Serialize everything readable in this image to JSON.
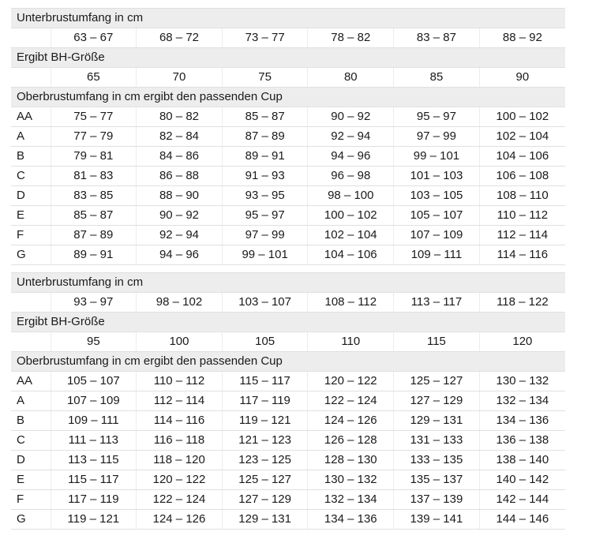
{
  "colors": {
    "header_row_background": "#ededed",
    "row_border": "#e0e0e0",
    "column_separator": "#ececec",
    "text": "#1a1a1a",
    "page_background": "#ffffff"
  },
  "tables": [
    {
      "underbust_header": "Unterbrustumfang in cm",
      "underbust_ranges": [
        "63 – 67",
        "68 – 72",
        "73 – 77",
        "78 – 82",
        "83 – 87",
        "88 – 92"
      ],
      "band_header": "Ergibt BH-Größe",
      "band_sizes": [
        "65",
        "70",
        "75",
        "80",
        "85",
        "90"
      ],
      "cup_header": "Oberbrustumfang in cm ergibt den passenden Cup",
      "cup_rows": [
        {
          "label": "AA",
          "values": [
            "75 – 77",
            "80 – 82",
            "85 – 87",
            "90 – 92",
            "95 – 97",
            "100 – 102"
          ]
        },
        {
          "label": "A",
          "values": [
            "77 – 79",
            "82 – 84",
            "87 – 89",
            "92 – 94",
            "97 – 99",
            "102 – 104"
          ]
        },
        {
          "label": "B",
          "values": [
            "79 – 81",
            "84 – 86",
            "89 – 91",
            "94 – 96",
            "99 – 101",
            "104 – 106"
          ]
        },
        {
          "label": "C",
          "values": [
            "81 – 83",
            "86 – 88",
            "91 – 93",
            "96 – 98",
            "101 – 103",
            "106 – 108"
          ]
        },
        {
          "label": "D",
          "values": [
            "83 – 85",
            "88 – 90",
            "93 – 95",
            "98 – 100",
            "103 – 105",
            "108 – 110"
          ]
        },
        {
          "label": "E",
          "values": [
            "85 – 87",
            "90 – 92",
            "95 – 97",
            "100 – 102",
            "105 – 107",
            "110 – 112"
          ]
        },
        {
          "label": "F",
          "values": [
            "87 – 89",
            "92 – 94",
            "97 – 99",
            "102 – 104",
            "107 – 109",
            "112 – 114"
          ]
        },
        {
          "label": "G",
          "values": [
            "89 – 91",
            "94 – 96",
            "99 – 101",
            "104 – 106",
            "109 – 111",
            "114 – 116"
          ]
        }
      ]
    },
    {
      "underbust_header": "Unterbrustumfang in cm",
      "underbust_ranges": [
        "93 – 97",
        "98 – 102",
        "103 – 107",
        "108 – 112",
        "113 – 117",
        "118 – 122"
      ],
      "band_header": "Ergibt BH-Größe",
      "band_sizes": [
        "95",
        "100",
        "105",
        "110",
        "115",
        "120"
      ],
      "cup_header": "Oberbrustumfang in cm ergibt den passenden Cup",
      "cup_rows": [
        {
          "label": "AA",
          "values": [
            "105 – 107",
            "110 – 112",
            "115 – 117",
            "120 – 122",
            "125 – 127",
            "130 – 132"
          ]
        },
        {
          "label": "A",
          "values": [
            "107 – 109",
            "112 – 114",
            "117 – 119",
            "122 – 124",
            "127 – 129",
            "132 – 134"
          ]
        },
        {
          "label": "B",
          "values": [
            "109 – 111",
            "114 – 116",
            "119 – 121",
            "124 – 126",
            "129 – 131",
            "134 – 136"
          ]
        },
        {
          "label": "C",
          "values": [
            "111 – 113",
            "116 – 118",
            "121 – 123",
            "126 – 128",
            "131 – 133",
            "136 – 138"
          ]
        },
        {
          "label": "D",
          "values": [
            "113 – 115",
            "118 – 120",
            "123 – 125",
            "128 – 130",
            "133 – 135",
            "138 – 140"
          ]
        },
        {
          "label": "E",
          "values": [
            "115 – 117",
            "120 – 122",
            "125 – 127",
            "130 – 132",
            "135 – 137",
            "140 – 142"
          ]
        },
        {
          "label": "F",
          "values": [
            "117 – 119",
            "122 – 124",
            "127 – 129",
            "132 – 134",
            "137 – 139",
            "142 – 144"
          ]
        },
        {
          "label": "G",
          "values": [
            "119 – 121",
            "124 – 126",
            "129 – 131",
            "134 – 136",
            "139 – 141",
            "144 – 146"
          ]
        }
      ]
    }
  ]
}
